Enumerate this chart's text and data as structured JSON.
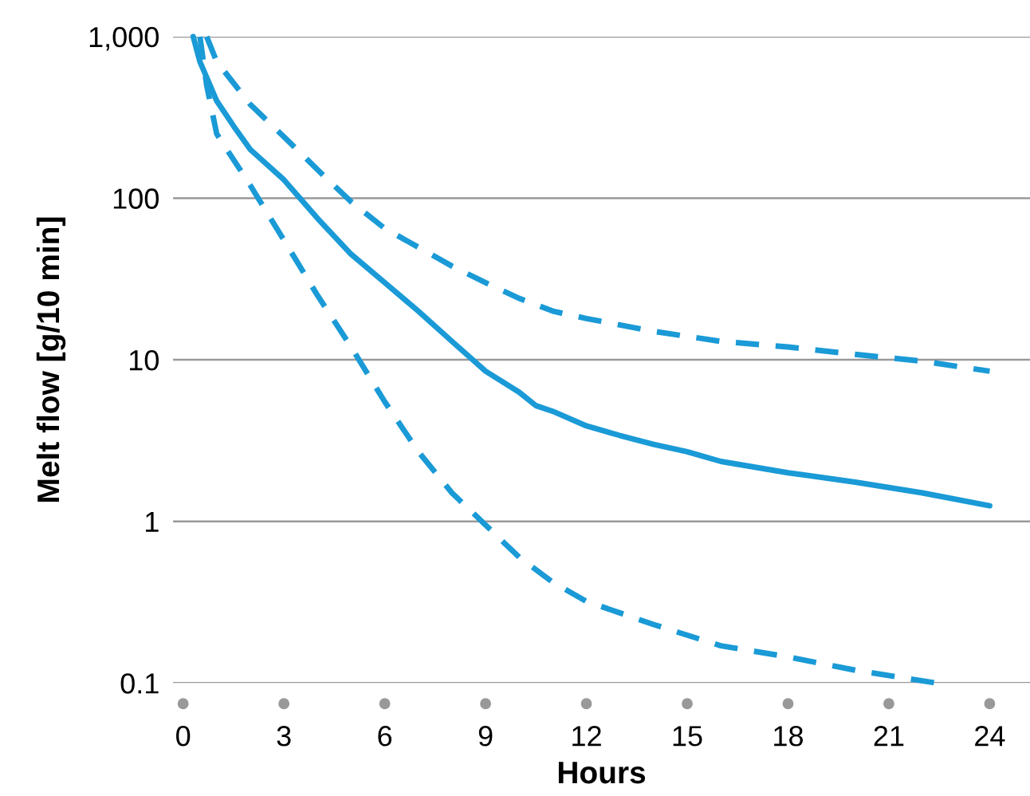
{
  "chart_data": {
    "type": "line",
    "xlabel": "Hours",
    "ylabel": "Melt flow [g/10 min]",
    "log": "y",
    "xlim": [
      -0.3,
      25.2
    ],
    "ylim": [
      0.1,
      1000
    ],
    "xticks": [
      0,
      3,
      6,
      9,
      12,
      15,
      18,
      21,
      24
    ],
    "yticks": [
      {
        "value": 1000,
        "label": "1,000"
      },
      100,
      10,
      1,
      0.1
    ],
    "grid": "y",
    "marker": "none",
    "legend": false,
    "series": [
      {
        "color": "#1a9ad6",
        "line_style": "dashed",
        "x": [
          0.7,
          1,
          2,
          3,
          4,
          5,
          6,
          8,
          9,
          10,
          11,
          12,
          14,
          16,
          18,
          20,
          22,
          24
        ],
        "values": [
          1000,
          700,
          380,
          240,
          150,
          95,
          65,
          38,
          30,
          24,
          20,
          18,
          15,
          13,
          12,
          10.8,
          9.8,
          8.5
        ]
      },
      {
        "color": "#1a9ad6",
        "line_style": "solid",
        "x": [
          0.3,
          0.5,
          1,
          1.5,
          2,
          3,
          4,
          5,
          6,
          7,
          8,
          9,
          10,
          10.5,
          11,
          12,
          13,
          14,
          15,
          16,
          18,
          20,
          22,
          24
        ],
        "values": [
          1000,
          700,
          400,
          280,
          200,
          130,
          75,
          45,
          30,
          20,
          13,
          8.5,
          6.3,
          5.2,
          4.8,
          3.9,
          3.4,
          3.0,
          2.7,
          2.35,
          2.0,
          1.75,
          1.5,
          1.25
        ]
      },
      {
        "color": "#1a9ad6",
        "line_style": "dashed",
        "x": [
          0.5,
          0.7,
          1,
          2,
          3,
          4,
          5,
          6,
          7,
          8,
          9,
          10,
          11,
          12,
          14,
          16,
          18,
          20,
          22.4
        ],
        "values": [
          1000,
          500,
          250,
          120,
          55,
          25,
          12,
          5.5,
          2.7,
          1.5,
          0.95,
          0.6,
          0.42,
          0.32,
          0.23,
          0.17,
          0.145,
          0.12,
          0.1
        ]
      }
    ]
  }
}
